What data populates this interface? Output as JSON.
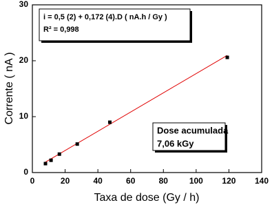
{
  "chart_data": {
    "type": "scatter",
    "xlabel": "Taxa de dose (Gy / h)",
    "ylabel": "Corrente ( nA )",
    "xlim": [
      0,
      140
    ],
    "xticks": [
      0,
      20,
      40,
      60,
      80,
      100,
      120,
      140
    ],
    "ylim": [
      0,
      30
    ],
    "yticks": [
      0,
      10,
      20,
      30
    ],
    "series": [
      {
        "type": "scatter",
        "color": "#000000",
        "x": [
          8,
          11.4,
          16.5,
          27.4,
          47.3,
          119
        ],
        "values": [
          1.6,
          2.2,
          3.3,
          5.1,
          9.0,
          20.6
        ]
      },
      {
        "type": "line",
        "color": "#e00000",
        "x": [
          8,
          119
        ],
        "values": [
          1.88,
          20.97
        ]
      }
    ],
    "annotations": [
      {
        "lines": [
          "i = 0,5 (2) + 0,172 (4).D ( nA.h / Gy )",
          "R² = 0,998"
        ]
      },
      {
        "lines": [
          "Dose acumulada",
          "7,06 kGy"
        ]
      }
    ]
  }
}
